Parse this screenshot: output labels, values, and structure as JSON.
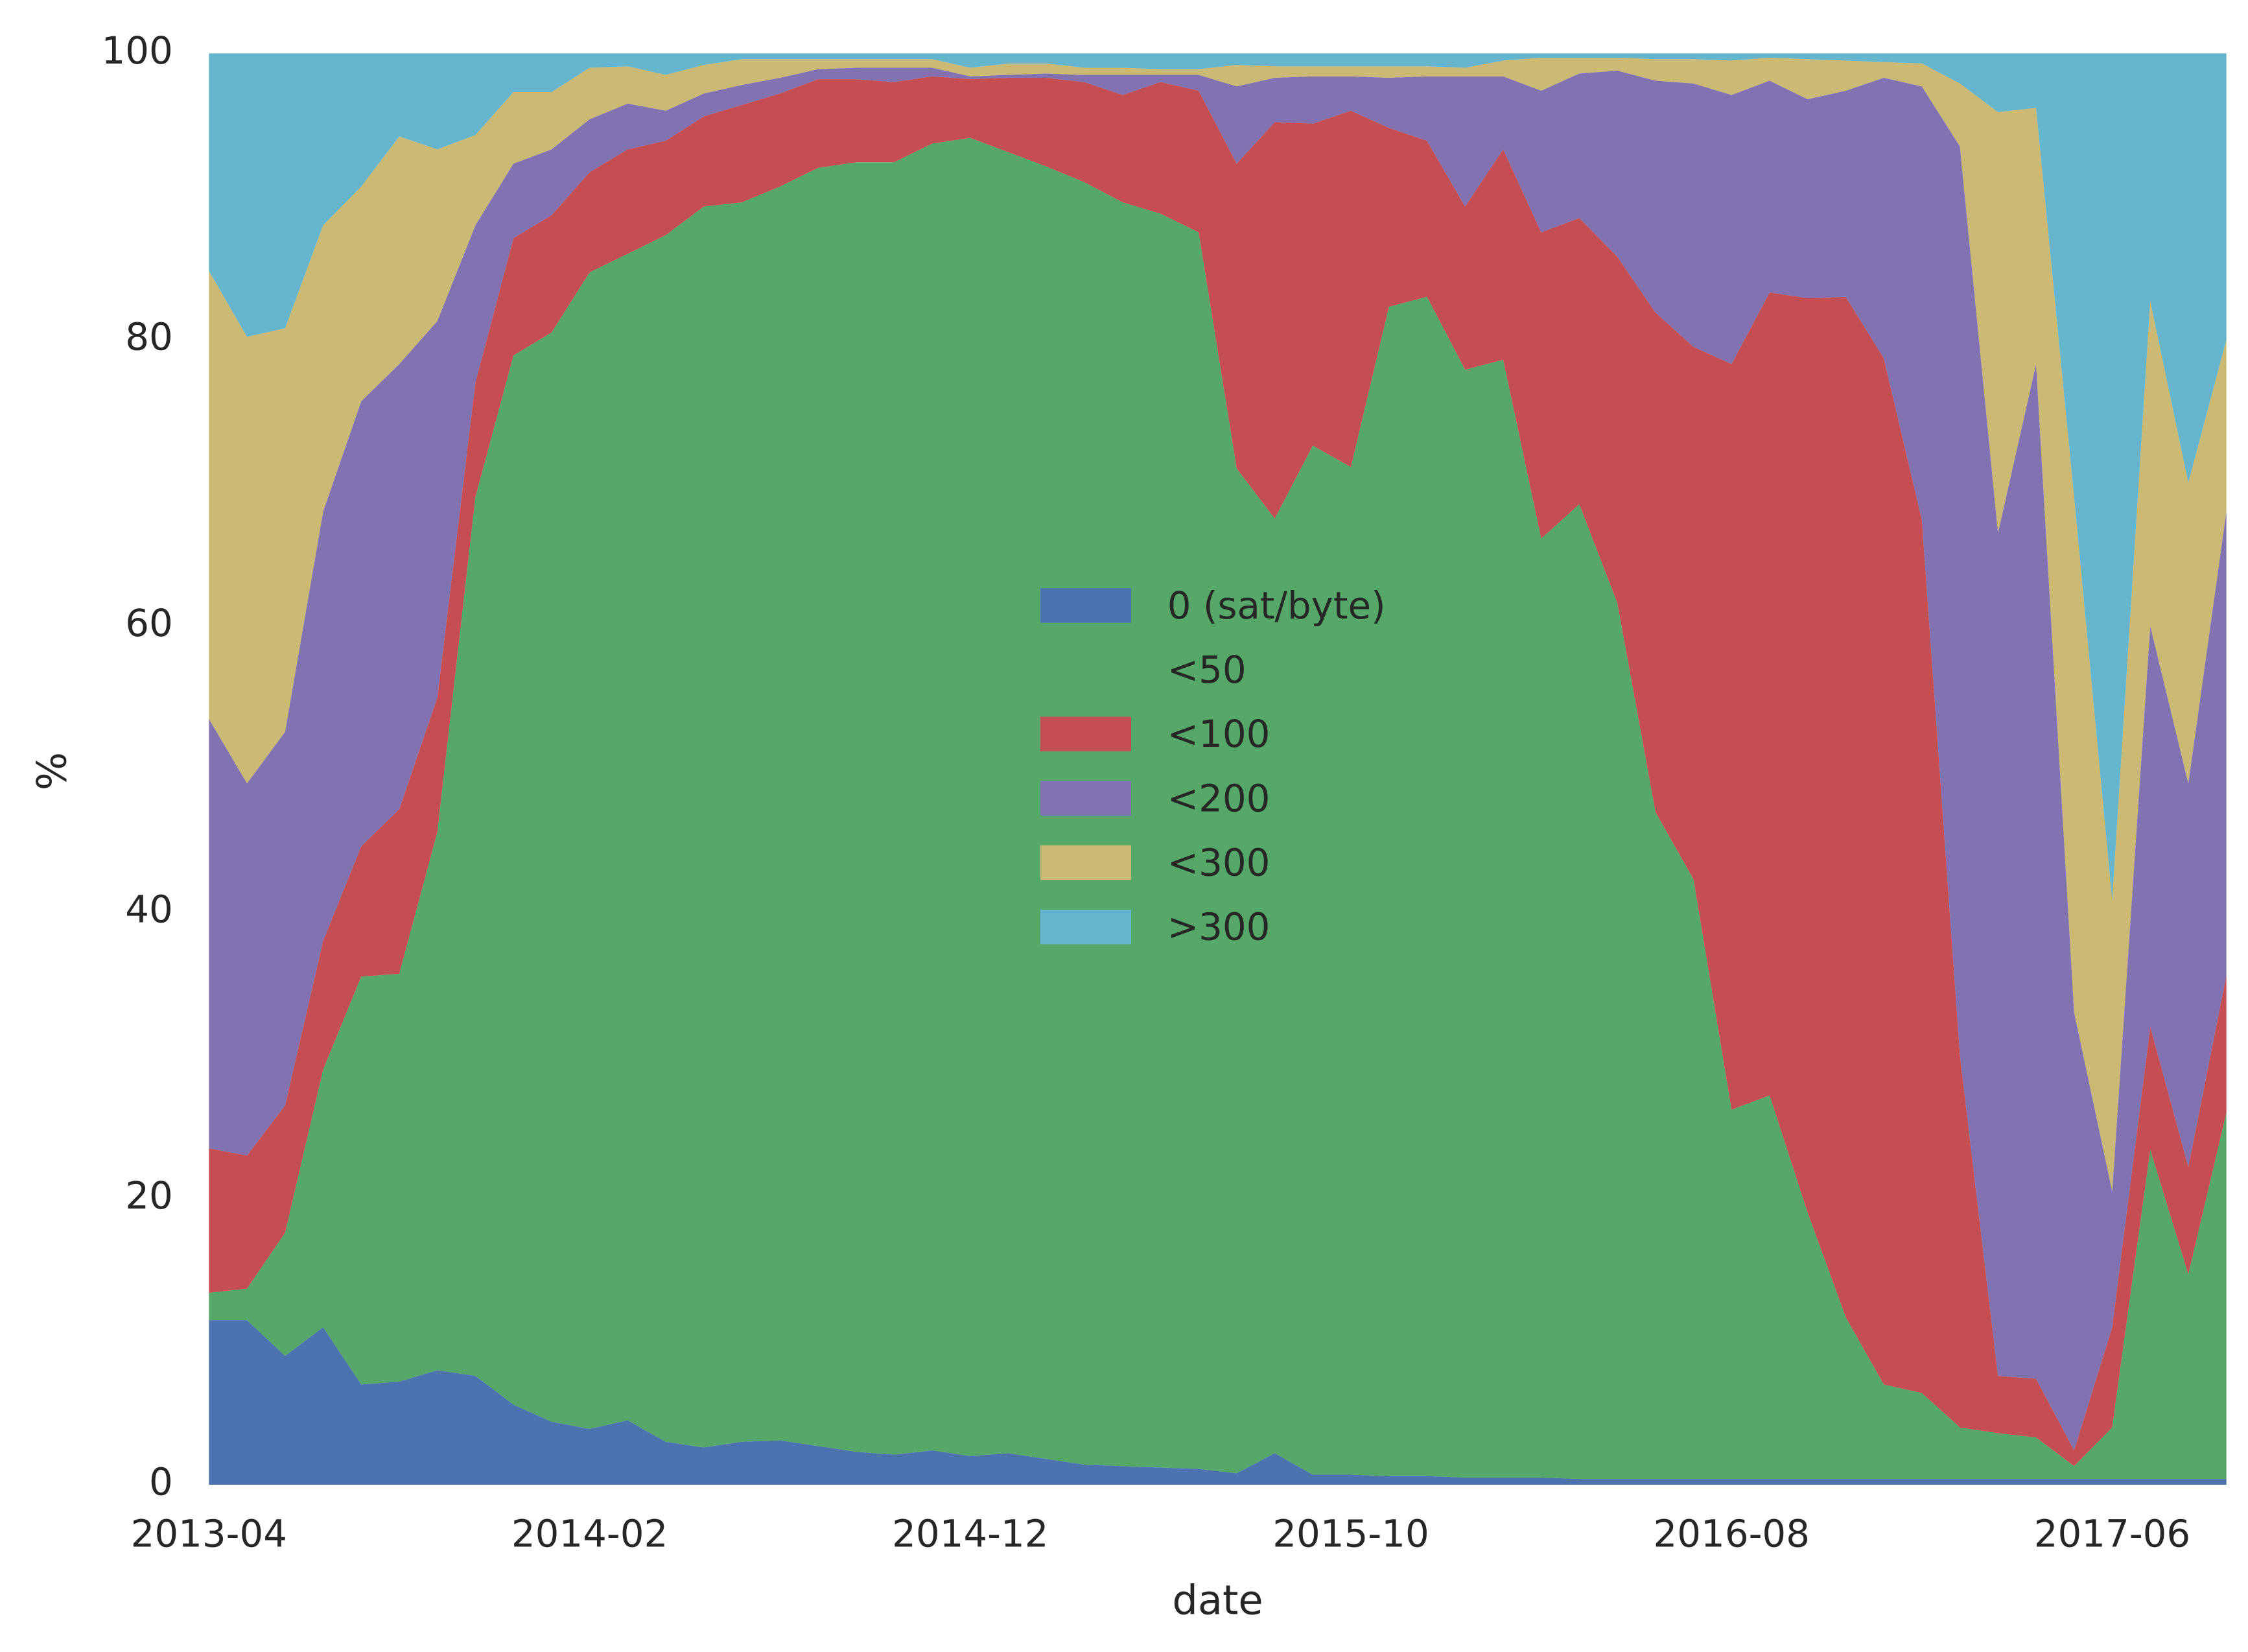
{
  "chart_data": {
    "type": "stacked_area",
    "x_label": "date",
    "y_label": "%",
    "x": [
      "2013-04",
      "2013-05",
      "2013-06",
      "2013-07",
      "2013-08",
      "2013-09",
      "2013-10",
      "2013-11",
      "2013-12",
      "2014-01",
      "2014-02",
      "2014-03",
      "2014-04",
      "2014-05",
      "2014-06",
      "2014-07",
      "2014-08",
      "2014-09",
      "2014-10",
      "2014-11",
      "2014-12",
      "2015-01",
      "2015-02",
      "2015-03",
      "2015-04",
      "2015-05",
      "2015-06",
      "2015-07",
      "2015-08",
      "2015-09",
      "2015-10",
      "2015-11",
      "2015-12",
      "2016-01",
      "2016-02",
      "2016-03",
      "2016-04",
      "2016-05",
      "2016-06",
      "2016-07",
      "2016-08",
      "2016-09",
      "2016-10",
      "2016-11",
      "2016-12",
      "2017-01",
      "2017-02",
      "2017-03",
      "2017-04",
      "2017-05",
      "2017-06",
      "2017-07",
      "2017-08",
      "2017-09"
    ],
    "xticks": [
      "2013-04",
      "2014-02",
      "2014-12",
      "2015-10",
      "2016-08",
      "2017-06"
    ],
    "ylim": [
      0,
      100
    ],
    "yticks": [
      0,
      20,
      40,
      60,
      80,
      100
    ],
    "grid": false,
    "legend": "center",
    "series": [
      {
        "name": "0 (sat/byte)",
        "color": "#4c72b0",
        "values": [
          11.5,
          11.5,
          9,
          11,
          7,
          7.2,
          8,
          7.6,
          5.6,
          4.4,
          3.9,
          4.5,
          3,
          2.6,
          3,
          3.1,
          2.7,
          2.3,
          2.1,
          2.4,
          2,
          2.2,
          1.8,
          1.4,
          1.3,
          1.2,
          1.1,
          0.8,
          2.2,
          0.7,
          0.7,
          0.6,
          0.6,
          0.5,
          0.5,
          0.5,
          0.4,
          0.4,
          0.4,
          0.4,
          0.4,
          0.4,
          0.4,
          0.4,
          0.4,
          0.4,
          0.4,
          0.4,
          0.4,
          0.4,
          0.4,
          0.4,
          0.4,
          0.4
        ]
      },
      {
        "name": "<50",
        "color": "#55a868",
        "values": [
          1.9,
          2.2,
          8.6,
          18,
          28.5,
          28.5,
          37.6,
          61.4,
          73.3,
          76.1,
          80.8,
          81.5,
          84.3,
          86.7,
          86.6,
          87.6,
          89.3,
          90.1,
          90.3,
          91.3,
          92.1,
          90.9,
          90.3,
          89.6,
          88.3,
          87.6,
          86.4,
          70.2,
          65.3,
          71.9,
          70.4,
          81.7,
          82.4,
          77.4,
          78.1,
          65.6,
          68.1,
          61.2,
          46.6,
          41.9,
          25.8,
          26.8,
          18.6,
          11.3,
          6.6,
          6,
          3.6,
          3.2,
          2.9,
          0.9,
          3.6,
          23,
          14.3,
          25.6
        ]
      },
      {
        "name": "<100",
        "color": "#c44e52",
        "values": [
          10.1,
          9.3,
          8.9,
          9,
          9.1,
          11.5,
          9.4,
          8,
          8.2,
          8.2,
          7,
          7.3,
          6.6,
          6.3,
          6.8,
          6.5,
          6.2,
          5.8,
          5.6,
          4.7,
          4.1,
          5.2,
          6.2,
          7,
          7.5,
          9.2,
          9.9,
          21.3,
          27.7,
          22.5,
          24.9,
          12.5,
          10.9,
          11.4,
          14.7,
          21.4,
          20,
          24.2,
          34.9,
          37.2,
          52.1,
          56.1,
          63.9,
          71.3,
          71.7,
          61,
          26,
          4,
          4.1,
          1.1,
          7,
          8.6,
          7.5,
          9.6
        ]
      },
      {
        "name": "<200",
        "color": "#8172b2",
        "values": [
          30,
          26,
          26.1,
          30,
          31.1,
          31.1,
          26.3,
          11,
          5.2,
          4.6,
          3.7,
          3.2,
          2.1,
          1.6,
          1.4,
          1.1,
          0.7,
          0.8,
          1,
          0.6,
          0.2,
          0.2,
          0.3,
          0.5,
          1.4,
          0.5,
          1.1,
          5.4,
          3.1,
          3.3,
          2.4,
          3.5,
          4.5,
          9.1,
          5.1,
          9.9,
          10.1,
          13,
          16.2,
          18.4,
          18.8,
          14.8,
          13.9,
          14.4,
          19.6,
          30.3,
          63.5,
          58.9,
          70.9,
          30.6,
          9.5,
          28,
          26.8,
          32.4
        ]
      },
      {
        "name": "<300",
        "color": "#ccb974",
        "values": [
          31.3,
          31.2,
          28.2,
          20,
          15,
          15.9,
          12,
          6.3,
          5,
          4,
          3.6,
          2.6,
          2.5,
          2,
          1.8,
          1.3,
          0.7,
          0.6,
          0.6,
          0.6,
          0.6,
          0.8,
          0.7,
          0.5,
          0.5,
          0.4,
          0.4,
          1.5,
          0.8,
          0.7,
          0.7,
          0.8,
          0.7,
          0.6,
          1.1,
          2.3,
          1.1,
          0.9,
          1.5,
          1.7,
          2.4,
          1.6,
          2.8,
          2.1,
          1.1,
          1.6,
          4.4,
          29.4,
          17.9,
          36,
          20.3,
          22.7,
          21,
          12
        ]
      },
      {
        "name": ">300",
        "color": "#64b5cd",
        "values": [
          15.2,
          19.8,
          19.2,
          12,
          9.3,
          5.8,
          6.7,
          5.7,
          2.7,
          2.7,
          1,
          0.9,
          1.5,
          0.8,
          0.4,
          0.4,
          0.4,
          0.4,
          0.4,
          0.4,
          1,
          0.7,
          0.7,
          1,
          1,
          1.1,
          1.1,
          0.8,
          0.9,
          0.9,
          0.9,
          0.9,
          0.9,
          1,
          0.5,
          0.3,
          0.3,
          0.3,
          0.4,
          0.4,
          0.5,
          0.3,
          0.4,
          0.5,
          0.6,
          0.7,
          2.1,
          4.1,
          3.8,
          31,
          59.2,
          17.3,
          30,
          20
        ]
      }
    ]
  }
}
